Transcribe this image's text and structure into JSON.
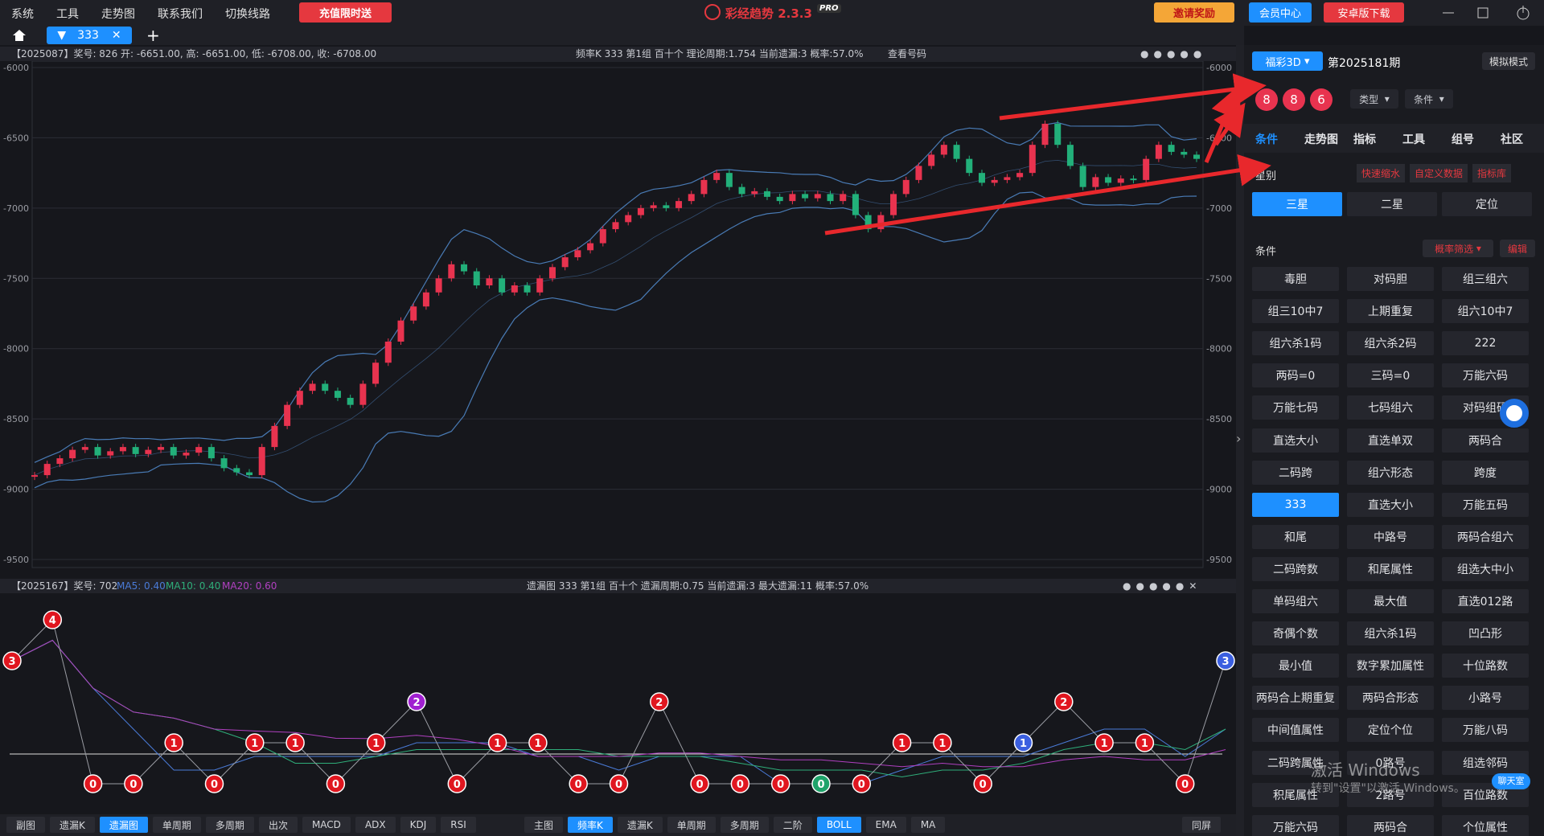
{
  "menu": [
    "系统",
    "工具",
    "走势图",
    "联系我们",
    "切换线路"
  ],
  "promo_button": "充值限时送",
  "app_title": "彩经趋势 2.3.3",
  "app_badge": "PRO",
  "top_right": {
    "invite": "邀请奖励",
    "member": "会员中心",
    "android": "安卓版下载"
  },
  "tab": {
    "label": "333",
    "add": "+"
  },
  "main_chart": {
    "info_left": "【2025087】奖号: 826  开: -6651.00, 高: -6651.00, 低: -6708.00, 收: -6708.00",
    "info_center": "频率K  333  第1组  百十个  理论周期:1.754  当前遗漏:3  概率:57.0%",
    "view_numbers": "查看号码",
    "ylim": [
      -9500,
      -6000
    ],
    "yticks": [
      -6000,
      -6500,
      -7000,
      -7500,
      -8000,
      -8500,
      -9000,
      -9500
    ],
    "up_color": "#e8334f",
    "down_color": "#22b07a",
    "band_color": "#4f86c6",
    "values": [
      -8900,
      -8820,
      -8780,
      -8720,
      -8700,
      -8760,
      -8730,
      -8700,
      -8750,
      -8720,
      -8700,
      -8760,
      -8740,
      -8700,
      -8780,
      -8850,
      -8880,
      -8900,
      -8700,
      -8550,
      -8400,
      -8300,
      -8250,
      -8300,
      -8350,
      -8400,
      -8250,
      -8100,
      -7950,
      -7800,
      -7700,
      -7600,
      -7500,
      -7400,
      -7450,
      -7550,
      -7500,
      -7600,
      -7550,
      -7600,
      -7500,
      -7420,
      -7350,
      -7300,
      -7250,
      -7150,
      -7100,
      -7050,
      -7000,
      -6980,
      -7000,
      -6950,
      -6900,
      -6800,
      -6750,
      -6850,
      -6900,
      -6880,
      -6920,
      -6950,
      -6900,
      -6930,
      -6900,
      -6950,
      -6900,
      -7050,
      -7150,
      -7050,
      -6900,
      -6800,
      -6700,
      -6620,
      -6550,
      -6650,
      -6750,
      -6820,
      -6800,
      -6780,
      -6750,
      -6550,
      -6400,
      -6550,
      -6700,
      -6850,
      -6780,
      -6820,
      -6790,
      -6800,
      -6650,
      -6550,
      -6600,
      -6620,
      -6650
    ]
  },
  "sub_chart": {
    "info_left": "【2025167】奖号: 702",
    "ma5": "MA5: 0.40",
    "ma10": "MA10: 0.40",
    "ma20": "MA20: 0.60",
    "info_center": "遗漏图  333  第1组  百十个  遗漏周期:0.75  当前遗漏:3  最大遗漏:11  概率:57.0%",
    "values": [
      3,
      4,
      0,
      0,
      1,
      0,
      1,
      1,
      0,
      1,
      2,
      0,
      1,
      1,
      0,
      0,
      2,
      0,
      0,
      0,
      0,
      0,
      1,
      1,
      0,
      1,
      2,
      1,
      1,
      0,
      3
    ],
    "colors": [
      "#e0161f",
      "#e0161f",
      "#e0161f",
      "#e0161f",
      "#e0161f",
      "#e0161f",
      "#e0161f",
      "#e0161f",
      "#e0161f",
      "#e0161f",
      "#a020d0",
      "#e0161f",
      "#e0161f",
      "#e0161f",
      "#e0161f",
      "#e0161f",
      "#e0161f",
      "#e0161f",
      "#e0161f",
      "#e0161f",
      "#1fa36a",
      "#e0161f",
      "#e0161f",
      "#e0161f",
      "#e0161f",
      "#3b5fe0",
      "#e0161f",
      "#e0161f",
      "#e0161f",
      "#e0161f",
      "#3b5fe0"
    ]
  },
  "bottom_left": [
    {
      "label": "副图"
    },
    {
      "label": "遗漏K"
    },
    {
      "label": "遗漏图",
      "active": true
    },
    {
      "label": "单周期"
    },
    {
      "label": "多周期"
    },
    {
      "label": "出次"
    },
    {
      "label": "MACD"
    },
    {
      "label": "ADX"
    },
    {
      "label": "KDJ"
    },
    {
      "label": "RSI"
    }
  ],
  "bottom_mid": [
    {
      "label": "主图"
    },
    {
      "label": "频率K",
      "active": true
    },
    {
      "label": "遗漏K"
    },
    {
      "label": "单周期"
    },
    {
      "label": "多周期"
    },
    {
      "label": "二阶"
    },
    {
      "label": "BOLL",
      "active": true
    },
    {
      "label": "EMA"
    },
    {
      "label": "MA"
    }
  ],
  "bottom_right": "同屏",
  "panel": {
    "lottery": "福彩3D",
    "issue": "第2025181期",
    "mode": "模拟模式",
    "balls": [
      "8",
      "8",
      "6"
    ],
    "type_select": "类型",
    "cond_select": "条件",
    "tabs": [
      "条件",
      "走势图",
      "指标",
      "工具",
      "组号",
      "社区"
    ],
    "star_label": "星别",
    "links": [
      "快速缩水",
      "自定义数据",
      "指标库"
    ],
    "stars": [
      "三星",
      "二星",
      "定位"
    ],
    "cond_label": "条件",
    "filter": "概率筛选",
    "edit": "编辑",
    "conditions": [
      {
        "label": "毒胆"
      },
      {
        "label": "对码胆"
      },
      {
        "label": "组三组六"
      },
      {
        "label": "组三10中7"
      },
      {
        "label": "上期重复"
      },
      {
        "label": "组六10中7"
      },
      {
        "label": "组六杀1码"
      },
      {
        "label": "组六杀2码"
      },
      {
        "label": "222"
      },
      {
        "label": "两码=0"
      },
      {
        "label": "三码=0"
      },
      {
        "label": "万能六码"
      },
      {
        "label": "万能七码"
      },
      {
        "label": "七码组六"
      },
      {
        "label": "对码组码"
      },
      {
        "label": "直选大小"
      },
      {
        "label": "直选单双"
      },
      {
        "label": "两码合"
      },
      {
        "label": "二码跨"
      },
      {
        "label": "组六形态"
      },
      {
        "label": "跨度"
      },
      {
        "label": "333",
        "active": true
      },
      {
        "label": "直选大小"
      },
      {
        "label": "万能五码"
      },
      {
        "label": "和尾"
      },
      {
        "label": "中路号"
      },
      {
        "label": "两码合组六"
      },
      {
        "label": "二码跨数"
      },
      {
        "label": "和尾属性"
      },
      {
        "label": "组选大中小"
      },
      {
        "label": "单码组六"
      },
      {
        "label": "最大值"
      },
      {
        "label": "直选012路"
      },
      {
        "label": "奇偶个数"
      },
      {
        "label": "组六杀1码"
      },
      {
        "label": "凹凸形"
      },
      {
        "label": "最小值"
      },
      {
        "label": "数字累加属性"
      },
      {
        "label": "十位路数"
      },
      {
        "label": "两码合上期重复"
      },
      {
        "label": "两码合形态"
      },
      {
        "label": "小路号"
      },
      {
        "label": "中间值属性"
      },
      {
        "label": "定位个位"
      },
      {
        "label": "万能八码"
      },
      {
        "label": "二码跨属性"
      },
      {
        "label": "0路号"
      },
      {
        "label": "组选邻码"
      },
      {
        "label": "积尾属性"
      },
      {
        "label": "2路号"
      },
      {
        "label": "百位路数"
      },
      {
        "label": "万能六码"
      },
      {
        "label": "两码合"
      },
      {
        "label": "个位属性"
      }
    ]
  },
  "watermark": {
    "line1": "激活 Windows",
    "line2": "转到\"设置\"以激活 Windows。"
  },
  "chat": "聊天室"
}
